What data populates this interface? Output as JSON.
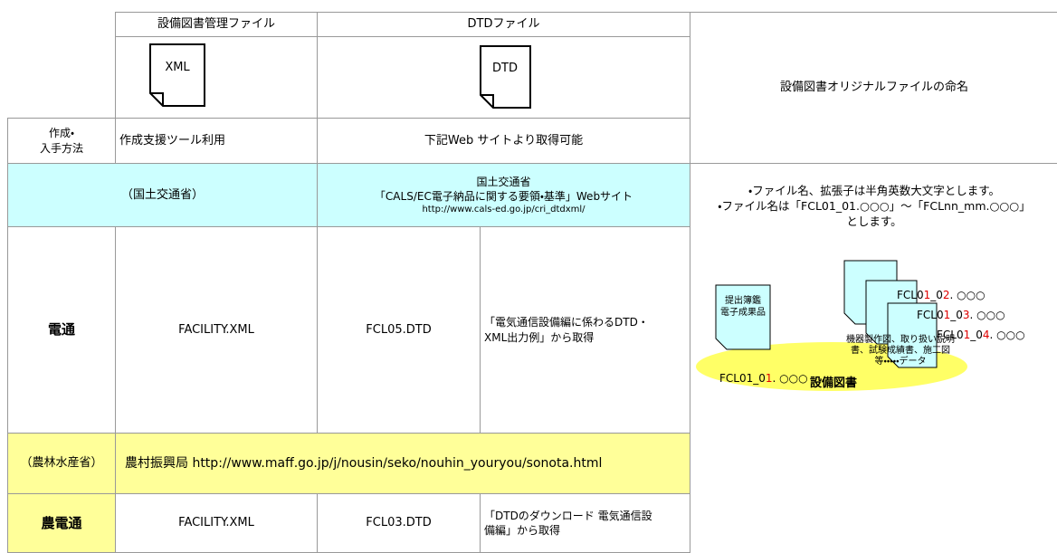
{
  "header": {
    "management_file": "設備図書管理ファイル",
    "dtd_file": "DTDファイル",
    "naming_title": "設備図書オリジナルファイルの命名"
  },
  "icons": [
    "XML",
    "DTD"
  ],
  "method_row": {
    "label": [
      "作成・",
      "入手方法"
    ],
    "management": "作成支援ツール利用",
    "dtd": "下記Web サイトより取得可能"
  },
  "mlit_row": {
    "label": "（国土交通省）",
    "source": [
      "国土交通省",
      "「CALS/EC電子納品に関する要領・基準」Webサイト",
      "http://www.cals-ed.go.jp/cri_dtdxml/"
    ]
  },
  "dentsu_row": {
    "label": "電通",
    "xml": "FACILITY.XML",
    "dtd": "FCL05.DTD",
    "source": [
      "「電気通信設備編に係わるDTD・",
      "XML出力例」から取得"
    ]
  },
  "maff_row": {
    "label": "（農林水産省）",
    "source": "農村振興局 http://www.maff.go.jp/j/nousin/seko/nouhin_youryou/sonota.html"
  },
  "nodentsu_row": {
    "label": "農電通",
    "xml": "FACILITY.XML",
    "dtd": "FCL03.DTD",
    "source": [
      "「DTDのダウンロード 電気通信設",
      "備編」から取得"
    ]
  },
  "naming": {
    "notes": [
      "・ファイル名、拡張子は半角英数大文字とします。",
      "・ファイル名は「FCL01_01.○○○」～「FCLnn_mm.○○○」",
      "とします。"
    ],
    "diagram": {
      "submission_doc": [
        "提出簿鑑",
        "電子成果品"
      ],
      "equipment_doc": [
        "機器製作図、取り扱い説明",
        "書、試験成績書、施工図",
        "等・・・・・データ"
      ],
      "files": [
        [
          "FCL0",
          "1",
          "_0",
          "1",
          ". ○○○"
        ],
        [
          "FCL0",
          "1",
          "_0",
          "2",
          ". ○○○"
        ],
        [
          "FCL0",
          "1",
          "_0",
          "3",
          ". ○○○"
        ],
        [
          "FCL0",
          "1",
          "_0",
          "4",
          ". ○○○"
        ]
      ],
      "caption": "設備図書"
    }
  }
}
